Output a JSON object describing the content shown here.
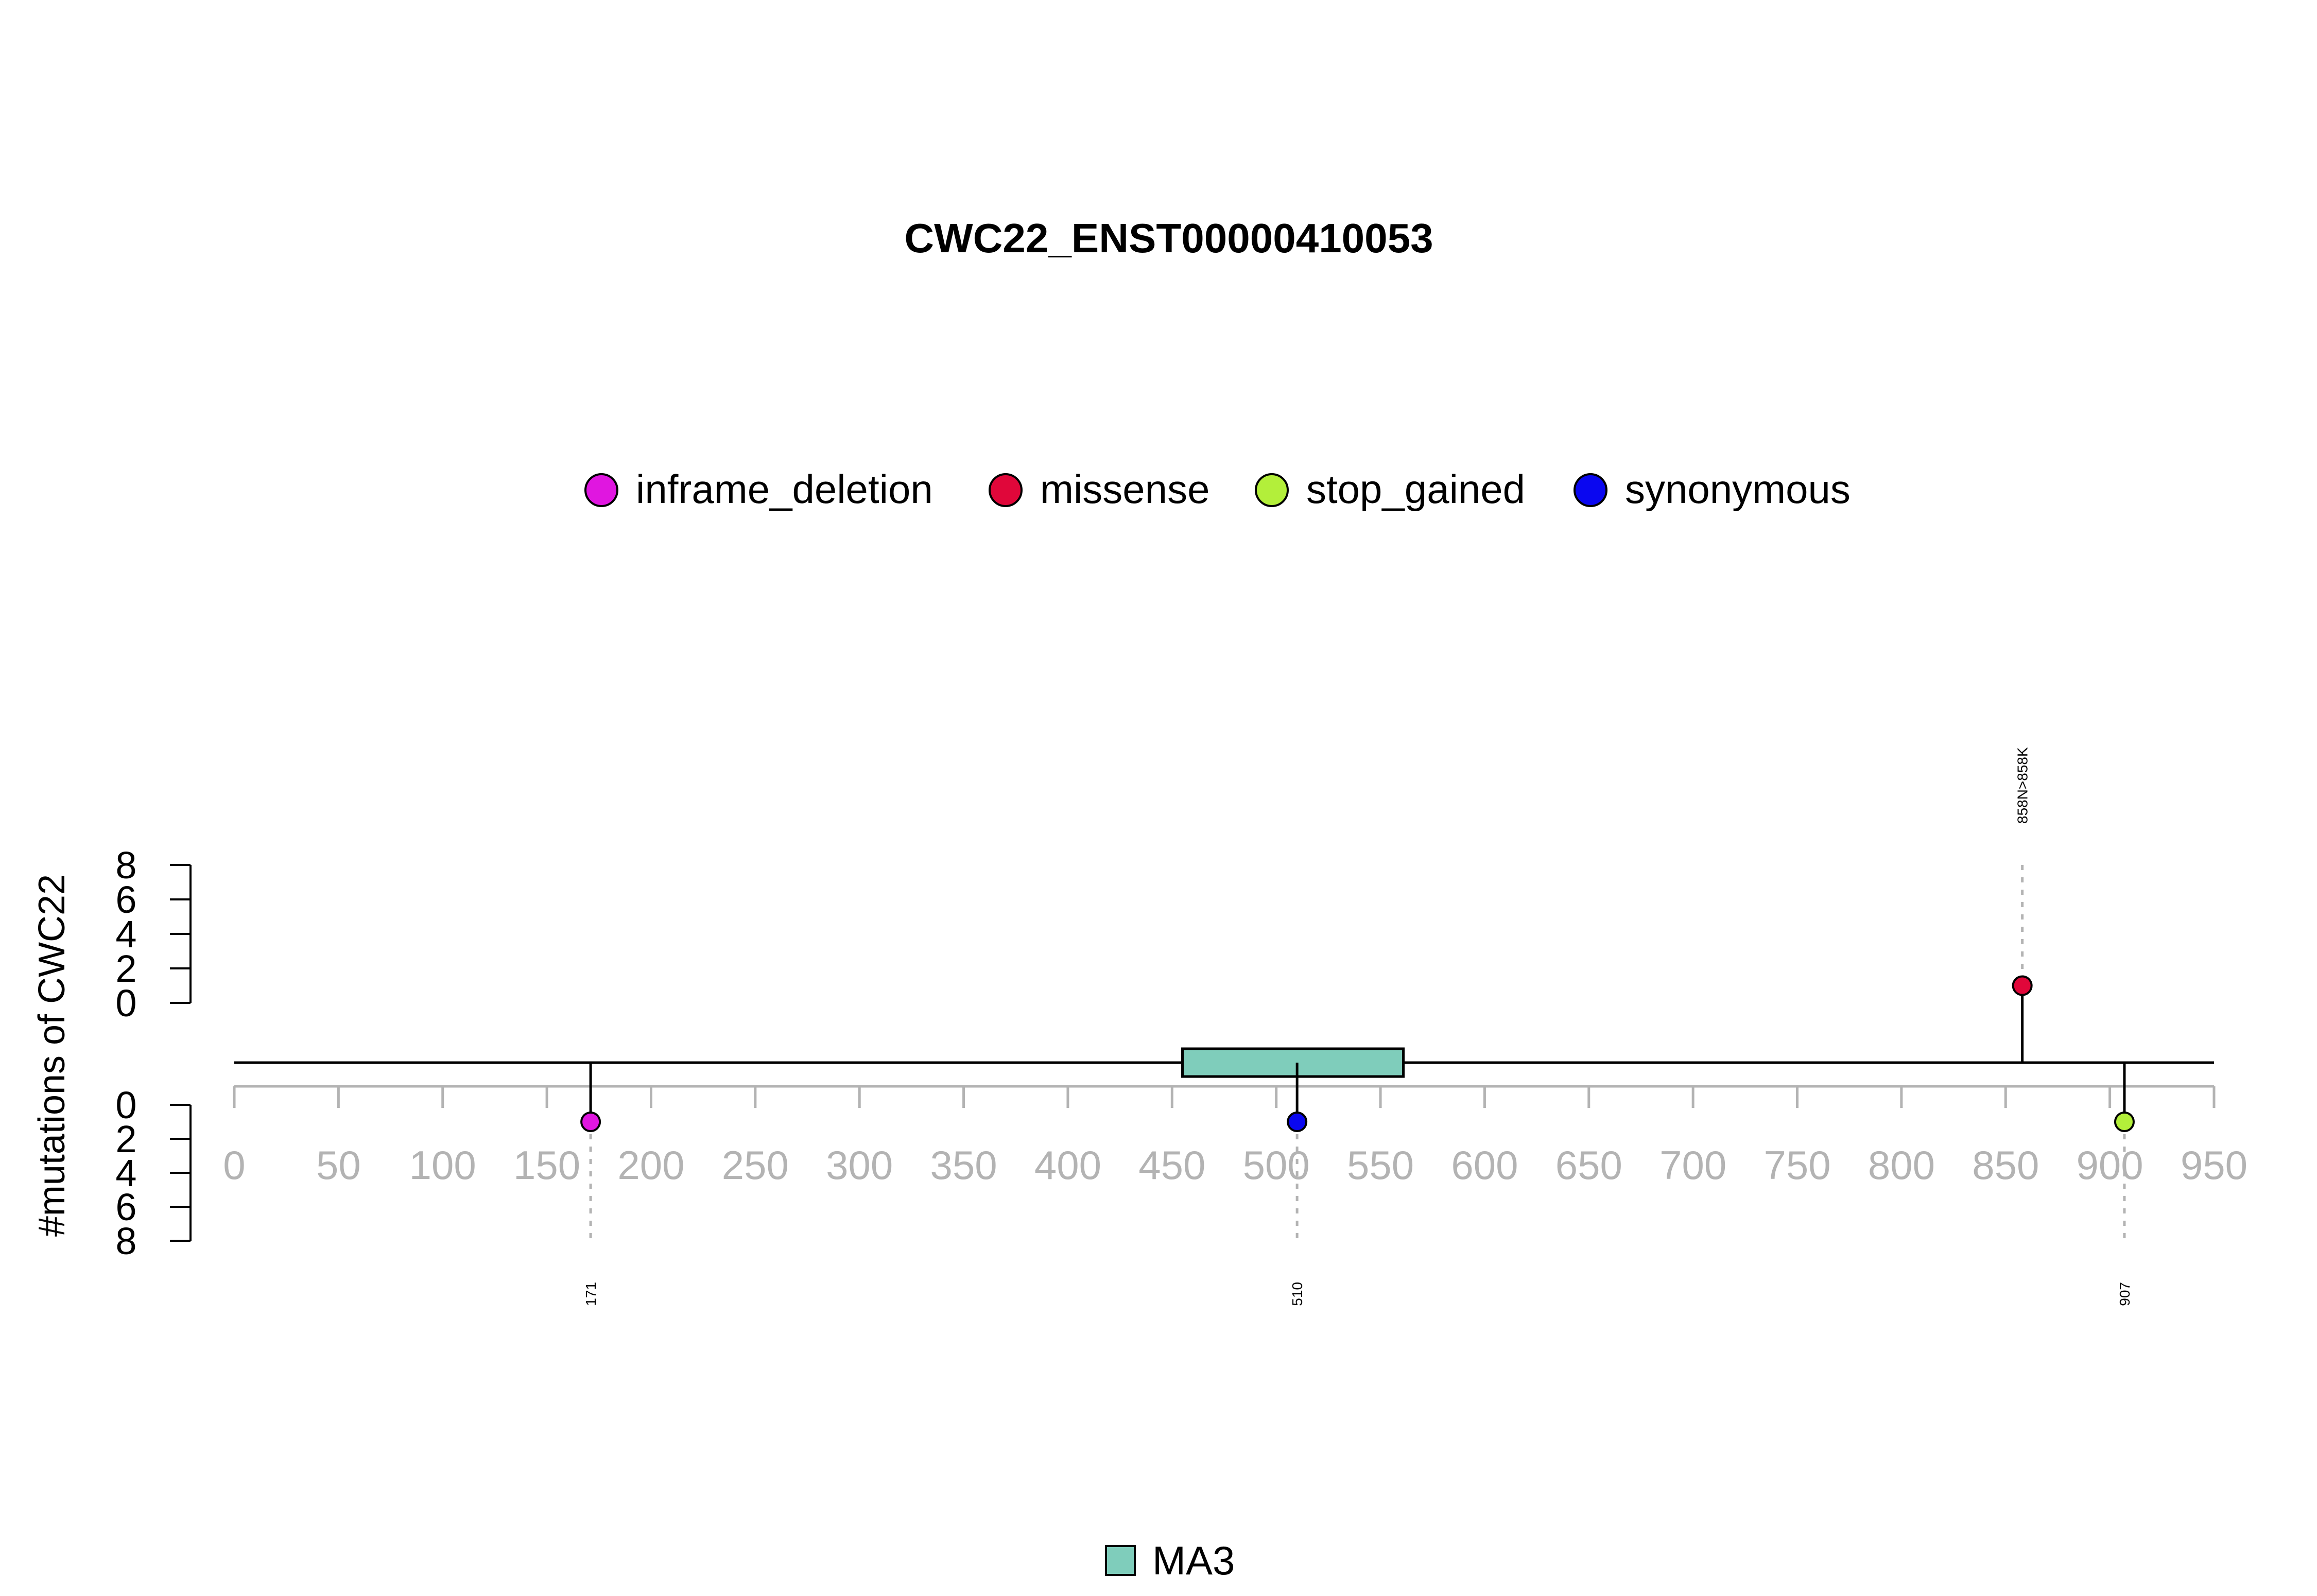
{
  "chart_data": {
    "type": "lollipop",
    "title": "CWC22_ENST00000410053",
    "ylabel": "#mutations of CWC22",
    "xlim": [
      0,
      950
    ],
    "x_ticks": [
      0,
      50,
      100,
      150,
      200,
      250,
      300,
      350,
      400,
      450,
      500,
      550,
      600,
      650,
      700,
      750,
      800,
      850,
      900,
      950
    ],
    "y_upper_ticks": [
      0,
      2,
      4,
      6,
      8
    ],
    "y_lower_ticks": [
      0,
      2,
      4,
      6,
      8
    ],
    "ylim": [
      0,
      8
    ],
    "legend": {
      "placement": "top",
      "entries": [
        {
          "label": "inframe_deletion",
          "color": "#e016e0"
        },
        {
          "label": "missense",
          "color": "#e0073a"
        },
        {
          "label": "stop_gained",
          "color": "#b3ef3a"
        },
        {
          "label": "synonymous",
          "color": "#0a07f0"
        }
      ]
    },
    "mutations": [
      {
        "position": 171,
        "count": 1,
        "type": "inframe_deletion",
        "side": "lower",
        "label": "171",
        "color": "#e016e0"
      },
      {
        "position": 510,
        "count": 1,
        "type": "synonymous",
        "side": "lower",
        "label": "510",
        "color": "#0a07f0"
      },
      {
        "position": 858,
        "count": 1,
        "type": "missense",
        "side": "upper",
        "label": "858N>858K",
        "color": "#e0073a"
      },
      {
        "position": 907,
        "count": 1,
        "type": "stop_gained",
        "side": "lower",
        "label": "907",
        "color": "#b3ef3a"
      }
    ],
    "domains": [
      {
        "name": "MA3",
        "start": 455,
        "end": 561,
        "color": "#7fcdbb"
      }
    ],
    "domain_legend": {
      "placement": "bottom",
      "entries": [
        {
          "label": "MA3",
          "color": "#7fcdbb"
        }
      ]
    }
  }
}
